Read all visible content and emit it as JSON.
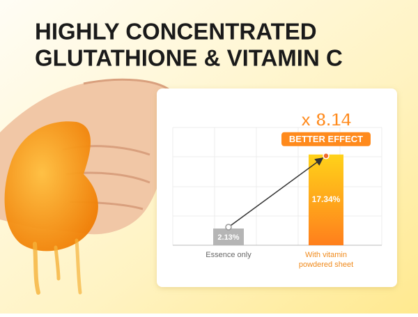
{
  "title": [
    "HIGHLY CONCENTRATED",
    "GLUTATHIONE & VITAMIN C"
  ],
  "chart_data": {
    "type": "bar",
    "categories": [
      "Essence only",
      "With vitamin powdered sheet"
    ],
    "values": [
      2.13,
      17.34
    ],
    "value_labels": [
      "2.13%",
      "17.34%"
    ],
    "colors": [
      "#b5b5b5",
      "#ff9a1c"
    ],
    "ylim": [
      0,
      22.5
    ],
    "annotation": {
      "multiplier": "x 8.14",
      "text": "BETTER EFFECT"
    }
  }
}
